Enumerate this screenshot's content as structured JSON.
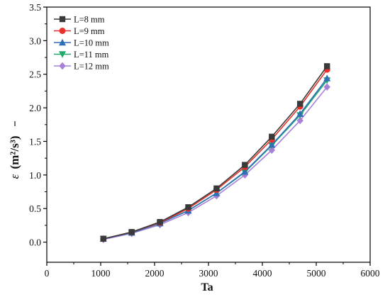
{
  "chart_data": {
    "type": "line",
    "xlabel": "Ta",
    "ylabel_symbol": "ε",
    "ylabel_units": "(m²/s³)",
    "xlim": [
      0,
      6000
    ],
    "ylim": [
      -0.3,
      3.5
    ],
    "xticks": [
      0,
      1000,
      2000,
      3000,
      4000,
      5000,
      6000
    ],
    "yticks": [
      0.0,
      0.5,
      1.0,
      1.5,
      2.0,
      2.5,
      3.0,
      3.5
    ],
    "grid": false,
    "legend_position": "top-left",
    "x": [
      1050,
      1575,
      2100,
      2625,
      3150,
      3675,
      4175,
      4700,
      5200
    ],
    "series": [
      {
        "name": "L=8 mm",
        "color": "#3a3a3a",
        "marker": "square",
        "values": [
          0.05,
          0.15,
          0.3,
          0.52,
          0.8,
          1.15,
          1.57,
          2.06,
          2.62
        ]
      },
      {
        "name": "L=9 mm",
        "color": "#e8312a",
        "marker": "circle",
        "values": [
          0.05,
          0.15,
          0.29,
          0.5,
          0.78,
          1.12,
          1.53,
          2.02,
          2.57
        ]
      },
      {
        "name": "L=10 mm",
        "color": "#2f6fb5",
        "marker": "triangle-up",
        "values": [
          0.05,
          0.14,
          0.28,
          0.47,
          0.73,
          1.05,
          1.45,
          1.91,
          2.44
        ]
      },
      {
        "name": "L=11 mm",
        "color": "#23a86b",
        "marker": "triangle-down",
        "values": [
          0.05,
          0.14,
          0.28,
          0.47,
          0.73,
          1.04,
          1.44,
          1.89,
          2.41
        ]
      },
      {
        "name": "L=12 mm",
        "color": "#a780d8",
        "marker": "diamond",
        "values": [
          0.04,
          0.13,
          0.26,
          0.44,
          0.69,
          1.0,
          1.37,
          1.81,
          2.31
        ]
      }
    ]
  }
}
